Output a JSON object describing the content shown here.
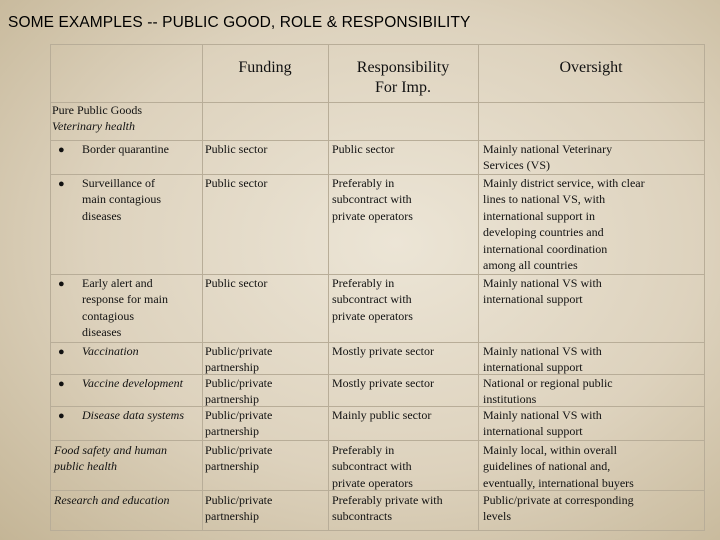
{
  "slide_title": "SOME EXAMPLES  -- PUBLIC GOOD, ROLE & RESPONSIBILITY",
  "headers": {
    "funding": "Funding",
    "responsibility_1": "Responsibility",
    "responsibility_2": "For Imp.",
    "oversight": "Oversight"
  },
  "section": {
    "title": "Pure Public Goods",
    "subtitle": "Veterinary health"
  },
  "bullet_symbol": "●",
  "rows": [
    {
      "label": [
        "Border quarantine"
      ],
      "funding": [
        "Public sector"
      ],
      "responsibility": [
        "Public sector"
      ],
      "oversight": [
        "Mainly national Veterinary",
        "Services (VS)"
      ]
    },
    {
      "label": [
        "Surveillance of",
        "main contagious",
        "diseases"
      ],
      "funding": [
        "Public sector"
      ],
      "responsibility": [
        "Preferably in",
        "subcontract with",
        "private operators"
      ],
      "oversight": [
        "Mainly district service, with clear",
        "lines to national VS, with",
        "international support in",
        "developing countries and",
        "international coordination",
        "among all countries"
      ]
    },
    {
      "label": [
        "Early alert and",
        "response for main",
        "contagious",
        "diseases"
      ],
      "funding": [
        "Public sector"
      ],
      "responsibility": [
        "Preferably in",
        "subcontract with",
        "private operators"
      ],
      "oversight": [
        "Mainly national VS with",
        "international support"
      ]
    },
    {
      "label": [
        "Vaccination"
      ],
      "funding": [
        "Public/private",
        "partnership"
      ],
      "responsibility": [
        "Mostly private sector"
      ],
      "oversight": [
        "Mainly national VS with",
        "international support"
      ]
    },
    {
      "label": [
        "Vaccine development"
      ],
      "funding": [
        "Public/private",
        "partnership"
      ],
      "responsibility": [
        "Mostly private sector"
      ],
      "oversight": [
        "National or regional public",
        "institutions"
      ]
    },
    {
      "label": [
        "Disease data systems"
      ],
      "funding": [
        "Public/private",
        "partnership"
      ],
      "responsibility": [
        "Mainly public sector"
      ],
      "oversight": [
        "Mainly national VS with",
        "international support"
      ]
    },
    {
      "label": [
        "Food safety and human",
        "public health"
      ],
      "funding": [
        "Public/private",
        "partnership"
      ],
      "responsibility": [
        "Preferably in",
        "subcontract with",
        "private operators"
      ],
      "oversight": [
        "Mainly local, within overall",
        "guidelines of national and,",
        "eventually, international buyers"
      ]
    },
    {
      "label": [
        "Research and education"
      ],
      "funding": [
        "Public/private",
        "partnership"
      ],
      "responsibility": [
        "Preferably private with",
        "subcontracts"
      ],
      "oversight": [
        "Public/private at corresponding",
        "levels"
      ]
    }
  ]
}
